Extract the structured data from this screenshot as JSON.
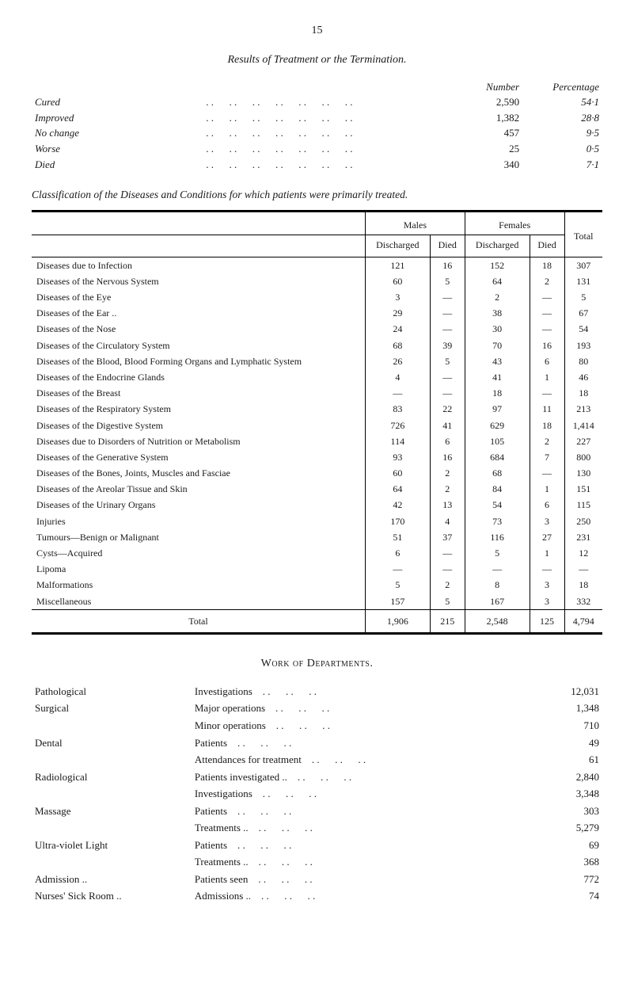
{
  "page_number": "15",
  "results": {
    "title": "Results of Treatment or the Termination.",
    "header_number": "Number",
    "header_percentage": "Percentage",
    "rows": [
      {
        "label": "Cured",
        "number": "2,590",
        "percentage": "54·1"
      },
      {
        "label": "Improved",
        "number": "1,382",
        "percentage": "28·8"
      },
      {
        "label": "No change",
        "number": "457",
        "percentage": "9·5"
      },
      {
        "label": "Worse",
        "number": "25",
        "percentage": "0·5"
      },
      {
        "label": "Died",
        "number": "340",
        "percentage": "7·1"
      }
    ]
  },
  "classification": {
    "caption": "Classification of the Diseases and Conditions for which patients were primarily treated.",
    "group_males": "Males",
    "group_females": "Females",
    "col_discharged": "Discharged",
    "col_died": "Died",
    "col_total": "Total",
    "rows": [
      {
        "name": "Diseases due to Infection",
        "m_dis": "121",
        "m_die": "16",
        "f_dis": "152",
        "f_die": "18",
        "total": "307"
      },
      {
        "name": "Diseases of the Nervous System",
        "m_dis": "60",
        "m_die": "5",
        "f_dis": "64",
        "f_die": "2",
        "total": "131"
      },
      {
        "name": "Diseases of the Eye",
        "m_dis": "3",
        "m_die": "—",
        "f_dis": "2",
        "f_die": "—",
        "total": "5"
      },
      {
        "name": "Diseases of the Ear ..",
        "m_dis": "29",
        "m_die": "—",
        "f_dis": "38",
        "f_die": "—",
        "total": "67"
      },
      {
        "name": "Diseases of the Nose",
        "m_dis": "24",
        "m_die": "—",
        "f_dis": "30",
        "f_die": "—",
        "total": "54"
      },
      {
        "name": "Diseases of the Circulatory System",
        "m_dis": "68",
        "m_die": "39",
        "f_dis": "70",
        "f_die": "16",
        "total": "193"
      },
      {
        "name": "Diseases of the Blood, Blood Forming Organs and Lymphatic System",
        "m_dis": "26",
        "m_die": "5",
        "f_dis": "43",
        "f_die": "6",
        "total": "80"
      },
      {
        "name": "Diseases of the Endocrine Glands",
        "m_dis": "4",
        "m_die": "—",
        "f_dis": "41",
        "f_die": "1",
        "total": "46"
      },
      {
        "name": "Diseases of the Breast",
        "m_dis": "—",
        "m_die": "—",
        "f_dis": "18",
        "f_die": "—",
        "total": "18"
      },
      {
        "name": "Diseases of the Respiratory System",
        "m_dis": "83",
        "m_die": "22",
        "f_dis": "97",
        "f_die": "11",
        "total": "213"
      },
      {
        "name": "Diseases of the Digestive System",
        "m_dis": "726",
        "m_die": "41",
        "f_dis": "629",
        "f_die": "18",
        "total": "1,414"
      },
      {
        "name": "Diseases due to Disorders of Nutrition or Metabolism",
        "m_dis": "114",
        "m_die": "6",
        "f_dis": "105",
        "f_die": "2",
        "total": "227"
      },
      {
        "name": "Diseases of the Generative System",
        "m_dis": "93",
        "m_die": "16",
        "f_dis": "684",
        "f_die": "7",
        "total": "800"
      },
      {
        "name": "Diseases of the Bones, Joints, Muscles and Fasciae",
        "m_dis": "60",
        "m_die": "2",
        "f_dis": "68",
        "f_die": "—",
        "total": "130"
      },
      {
        "name": "Diseases of the Areolar Tissue and Skin",
        "m_dis": "64",
        "m_die": "2",
        "f_dis": "84",
        "f_die": "1",
        "total": "151"
      },
      {
        "name": "Diseases of the Urinary Organs",
        "m_dis": "42",
        "m_die": "13",
        "f_dis": "54",
        "f_die": "6",
        "total": "115"
      },
      {
        "name": "Injuries",
        "m_dis": "170",
        "m_die": "4",
        "f_dis": "73",
        "f_die": "3",
        "total": "250"
      },
      {
        "name": "Tumours—Benign or Malignant",
        "m_dis": "51",
        "m_die": "37",
        "f_dis": "116",
        "f_die": "27",
        "total": "231"
      },
      {
        "name": "Cysts—Acquired",
        "m_dis": "6",
        "m_die": "—",
        "f_dis": "5",
        "f_die": "1",
        "total": "12"
      },
      {
        "name": "Lipoma",
        "m_dis": "—",
        "m_die": "—",
        "f_dis": "—",
        "f_die": "—",
        "total": "—"
      },
      {
        "name": "Malformations",
        "m_dis": "5",
        "m_die": "2",
        "f_dis": "8",
        "f_die": "3",
        "total": "18"
      },
      {
        "name": "Miscellaneous",
        "m_dis": "157",
        "m_die": "5",
        "f_dis": "167",
        "f_die": "3",
        "total": "332"
      }
    ],
    "totals": {
      "name": "Total",
      "m_dis": "1,906",
      "m_die": "215",
      "f_dis": "2,548",
      "f_die": "125",
      "total": "4,794"
    }
  },
  "departments": {
    "title": "Work of Departments.",
    "rows": [
      {
        "cat": "Pathological",
        "metric": "Investigations",
        "val": "12,031"
      },
      {
        "cat": "Surgical",
        "metric": "Major operations",
        "val": "1,348"
      },
      {
        "cat": "",
        "metric": "Minor operations",
        "val": "710"
      },
      {
        "cat": "Dental",
        "metric": "Patients",
        "val": "49"
      },
      {
        "cat": "",
        "metric": "Attendances for treatment",
        "val": "61"
      },
      {
        "cat": "Radiological",
        "metric": "Patients investigated ..",
        "val": "2,840"
      },
      {
        "cat": "",
        "metric": "Investigations",
        "val": "3,348"
      },
      {
        "cat": "Massage",
        "metric": "Patients",
        "val": "303"
      },
      {
        "cat": "",
        "metric": "Treatments ..",
        "val": "5,279"
      },
      {
        "cat": "Ultra-violet Light",
        "metric": "Patients",
        "val": "69"
      },
      {
        "cat": "",
        "metric": "Treatments ..",
        "val": "368"
      },
      {
        "cat": "Admission ..",
        "metric": "Patients seen",
        "val": "772"
      },
      {
        "cat": "Nurses' Sick Room ..",
        "metric": "Admissions ..",
        "val": "74"
      }
    ]
  }
}
